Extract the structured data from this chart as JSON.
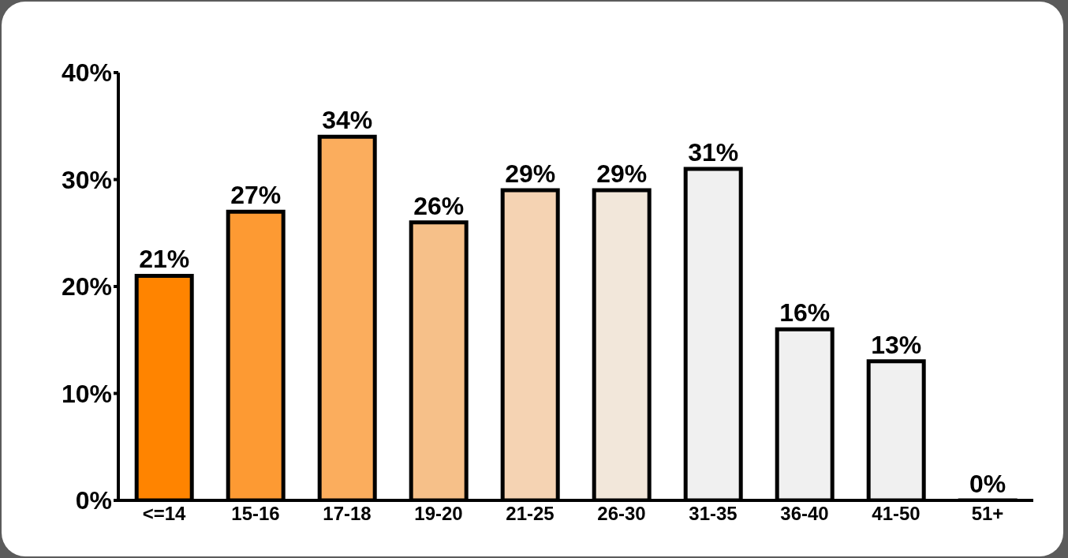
{
  "chart_data": {
    "type": "bar",
    "categories": [
      "<=14",
      "15-16",
      "17-18",
      "19-20",
      "21-25",
      "26-30",
      "31-35",
      "36-40",
      "41-50",
      "51+"
    ],
    "values": [
      21,
      27,
      34,
      26,
      29,
      29,
      31,
      16,
      13,
      0
    ],
    "value_labels": [
      "21%",
      "27%",
      "34%",
      "26%",
      "29%",
      "29%",
      "31%",
      "16%",
      "13%",
      "0%"
    ],
    "colors": [
      "#ff8400",
      "#fd9a33",
      "#fbad5d",
      "#f6c089",
      "#f5d3b3",
      "#f2e7da",
      "#f0f0f0",
      "#f0f0f0",
      "#f0f0f0",
      "#f0f0f0"
    ],
    "ylim": [
      0,
      40
    ],
    "yticks": [
      {
        "value": 0,
        "label": "0%"
      },
      {
        "value": 10,
        "label": "10%"
      },
      {
        "value": 20,
        "label": "20%"
      },
      {
        "value": 30,
        "label": "30%"
      },
      {
        "value": 40,
        "label": "40%"
      }
    ],
    "grid": false,
    "legend": false
  }
}
